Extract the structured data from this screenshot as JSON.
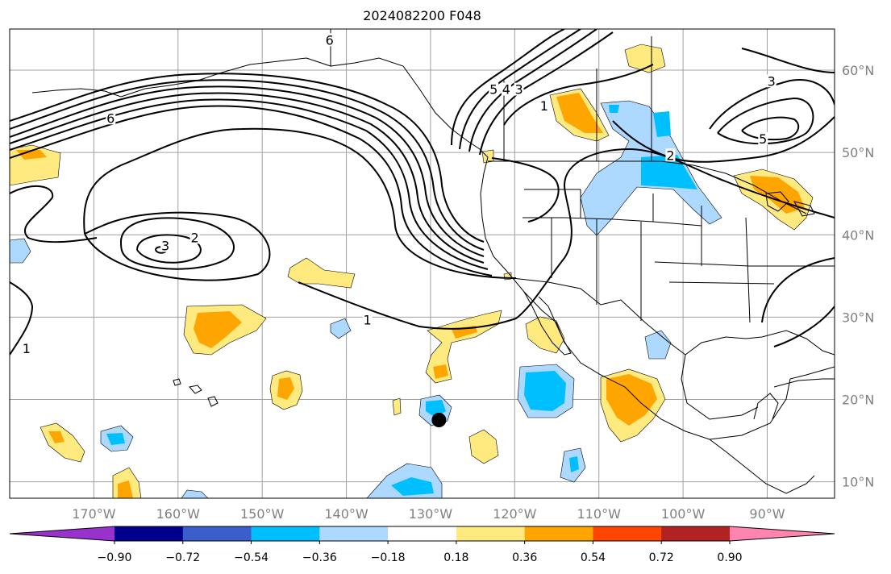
{
  "title": "2024082200 F048",
  "map": {
    "lon_range": [
      -180,
      -82
    ],
    "lat_range": [
      8,
      65
    ],
    "lon_ticks": [
      {
        "value": -170,
        "label": "170°W"
      },
      {
        "value": -160,
        "label": "160°W"
      },
      {
        "value": -150,
        "label": "150°W"
      },
      {
        "value": -140,
        "label": "140°W"
      },
      {
        "value": -130,
        "label": "130°W"
      },
      {
        "value": -120,
        "label": "120°W"
      },
      {
        "value": -110,
        "label": "110°W"
      },
      {
        "value": -100,
        "label": "100°W"
      },
      {
        "value": -90,
        "label": "90°W"
      }
    ],
    "lat_ticks": [
      {
        "value": 60,
        "label": "60°N"
      },
      {
        "value": 50,
        "label": "50°N"
      },
      {
        "value": 40,
        "label": "40°N"
      },
      {
        "value": 30,
        "label": "30°N"
      },
      {
        "value": 20,
        "label": "20°N"
      },
      {
        "value": 10,
        "label": "10°N"
      }
    ],
    "grid": true,
    "storm_marker": {
      "lon": -129,
      "lat": 17.5
    },
    "contour_labels": [
      {
        "text": "6",
        "lon": -168,
        "lat": 54
      },
      {
        "text": "6",
        "lon": -142,
        "lat": 63.5
      },
      {
        "text": "3",
        "lon": -161.5,
        "lat": 38.5
      },
      {
        "text": "2",
        "lon": -158,
        "lat": 39.5
      },
      {
        "text": "1",
        "lon": -137.5,
        "lat": 29.5
      },
      {
        "text": "5",
        "lon": -122.5,
        "lat": 57.5
      },
      {
        "text": "4",
        "lon": -121,
        "lat": 57.5
      },
      {
        "text": "3",
        "lon": -119.5,
        "lat": 57.5
      },
      {
        "text": "1",
        "lon": -116.5,
        "lat": 55.5
      },
      {
        "text": "2",
        "lon": -101.5,
        "lat": 49.5
      },
      {
        "text": "3",
        "lon": -89.5,
        "lat": 58.5
      },
      {
        "text": "5",
        "lon": -90.5,
        "lat": 51.5
      },
      {
        "text": "1",
        "lon": -178,
        "lat": 26
      }
    ]
  },
  "colorbar": {
    "colors": [
      "#9932cc",
      "#00008b",
      "#3a5fcd",
      "#00bfff",
      "#add8ff",
      "#ffffff",
      "#ffea80",
      "#ffa500",
      "#ff4500",
      "#b22222",
      "#ff85b0"
    ],
    "tick_labels": [
      "−0.90",
      "−0.72",
      "−0.54",
      "−0.36",
      "−0.18",
      "0.18",
      "0.36",
      "0.54",
      "0.72",
      "0.90"
    ]
  }
}
